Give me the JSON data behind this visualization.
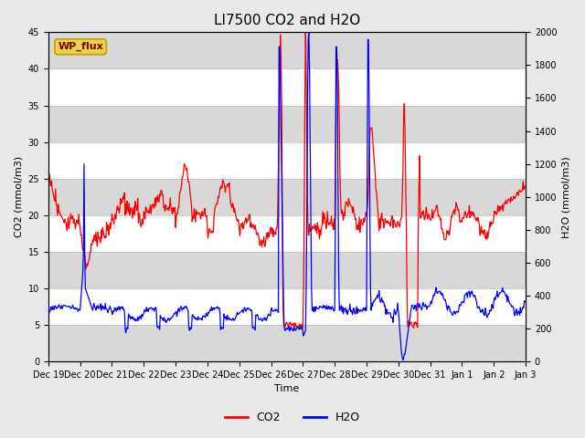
{
  "title": "LI7500 CO2 and H2O",
  "xlabel": "Time",
  "ylabel_left": "CO2 (mmol/m3)",
  "ylabel_right": "H2O (mmol/m3)",
  "ylim_left": [
    0,
    45
  ],
  "ylim_right": [
    0,
    2000
  ],
  "yticks_left": [
    0,
    5,
    10,
    15,
    20,
    25,
    30,
    35,
    40,
    45
  ],
  "yticks_right": [
    0,
    200,
    400,
    600,
    800,
    1000,
    1200,
    1400,
    1600,
    1800,
    2000
  ],
  "xtick_labels": [
    "Dec 19",
    "Dec 20",
    "Dec 21",
    "Dec 22",
    "Dec 23",
    "Dec 24",
    "Dec 25",
    "Dec 26",
    "Dec 27",
    "Dec 28",
    "Dec 29",
    "Dec 30",
    "Dec 31",
    "Jan 1",
    "Jan 2",
    "Jan 3"
  ],
  "watermark_text": "WP_flux",
  "watermark_color": "#e8d44d",
  "watermark_edge_color": "#c8a000",
  "watermark_text_color": "#800000",
  "background_color": "#e8e8e8",
  "plot_bg_color": "#ffffff",
  "band_color": "#d8d8d8",
  "co2_color": "red",
  "h2o_color": "blue",
  "title_fontsize": 11,
  "label_fontsize": 8,
  "tick_fontsize": 7
}
